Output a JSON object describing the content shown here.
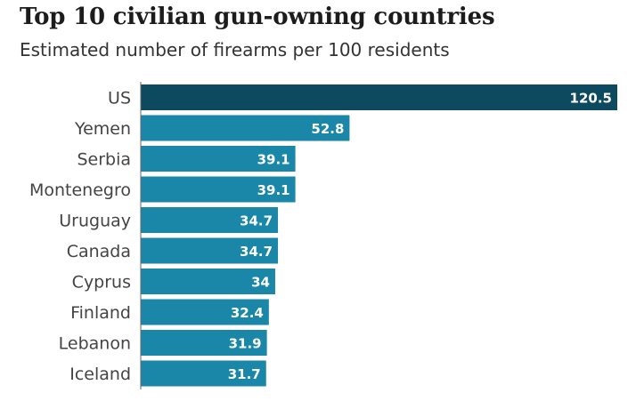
{
  "chart_data": {
    "type": "bar",
    "orientation": "horizontal",
    "title": "Top 10 civilian gun-owning countries",
    "subtitle": "Estimated number of firearms per 100 residents",
    "categories": [
      "US",
      "Yemen",
      "Serbia",
      "Montenegro",
      "Uruguay",
      "Canada",
      "Cyprus",
      "Finland",
      "Lebanon",
      "Iceland"
    ],
    "values": [
      120.5,
      52.8,
      39.1,
      39.1,
      34.7,
      34.7,
      34,
      32.4,
      31.9,
      31.7
    ],
    "value_labels": [
      "120.5",
      "52.8",
      "39.1",
      "39.1",
      "34.7",
      "34.7",
      "34",
      "32.4",
      "31.9",
      "31.7"
    ],
    "xlabel": "",
    "ylabel": "",
    "xlim": [
      0,
      120.5
    ],
    "grid": false,
    "colors": {
      "highlight": "#0d4a5f",
      "bar": "#1a86a8",
      "axis": "#666666"
    }
  }
}
